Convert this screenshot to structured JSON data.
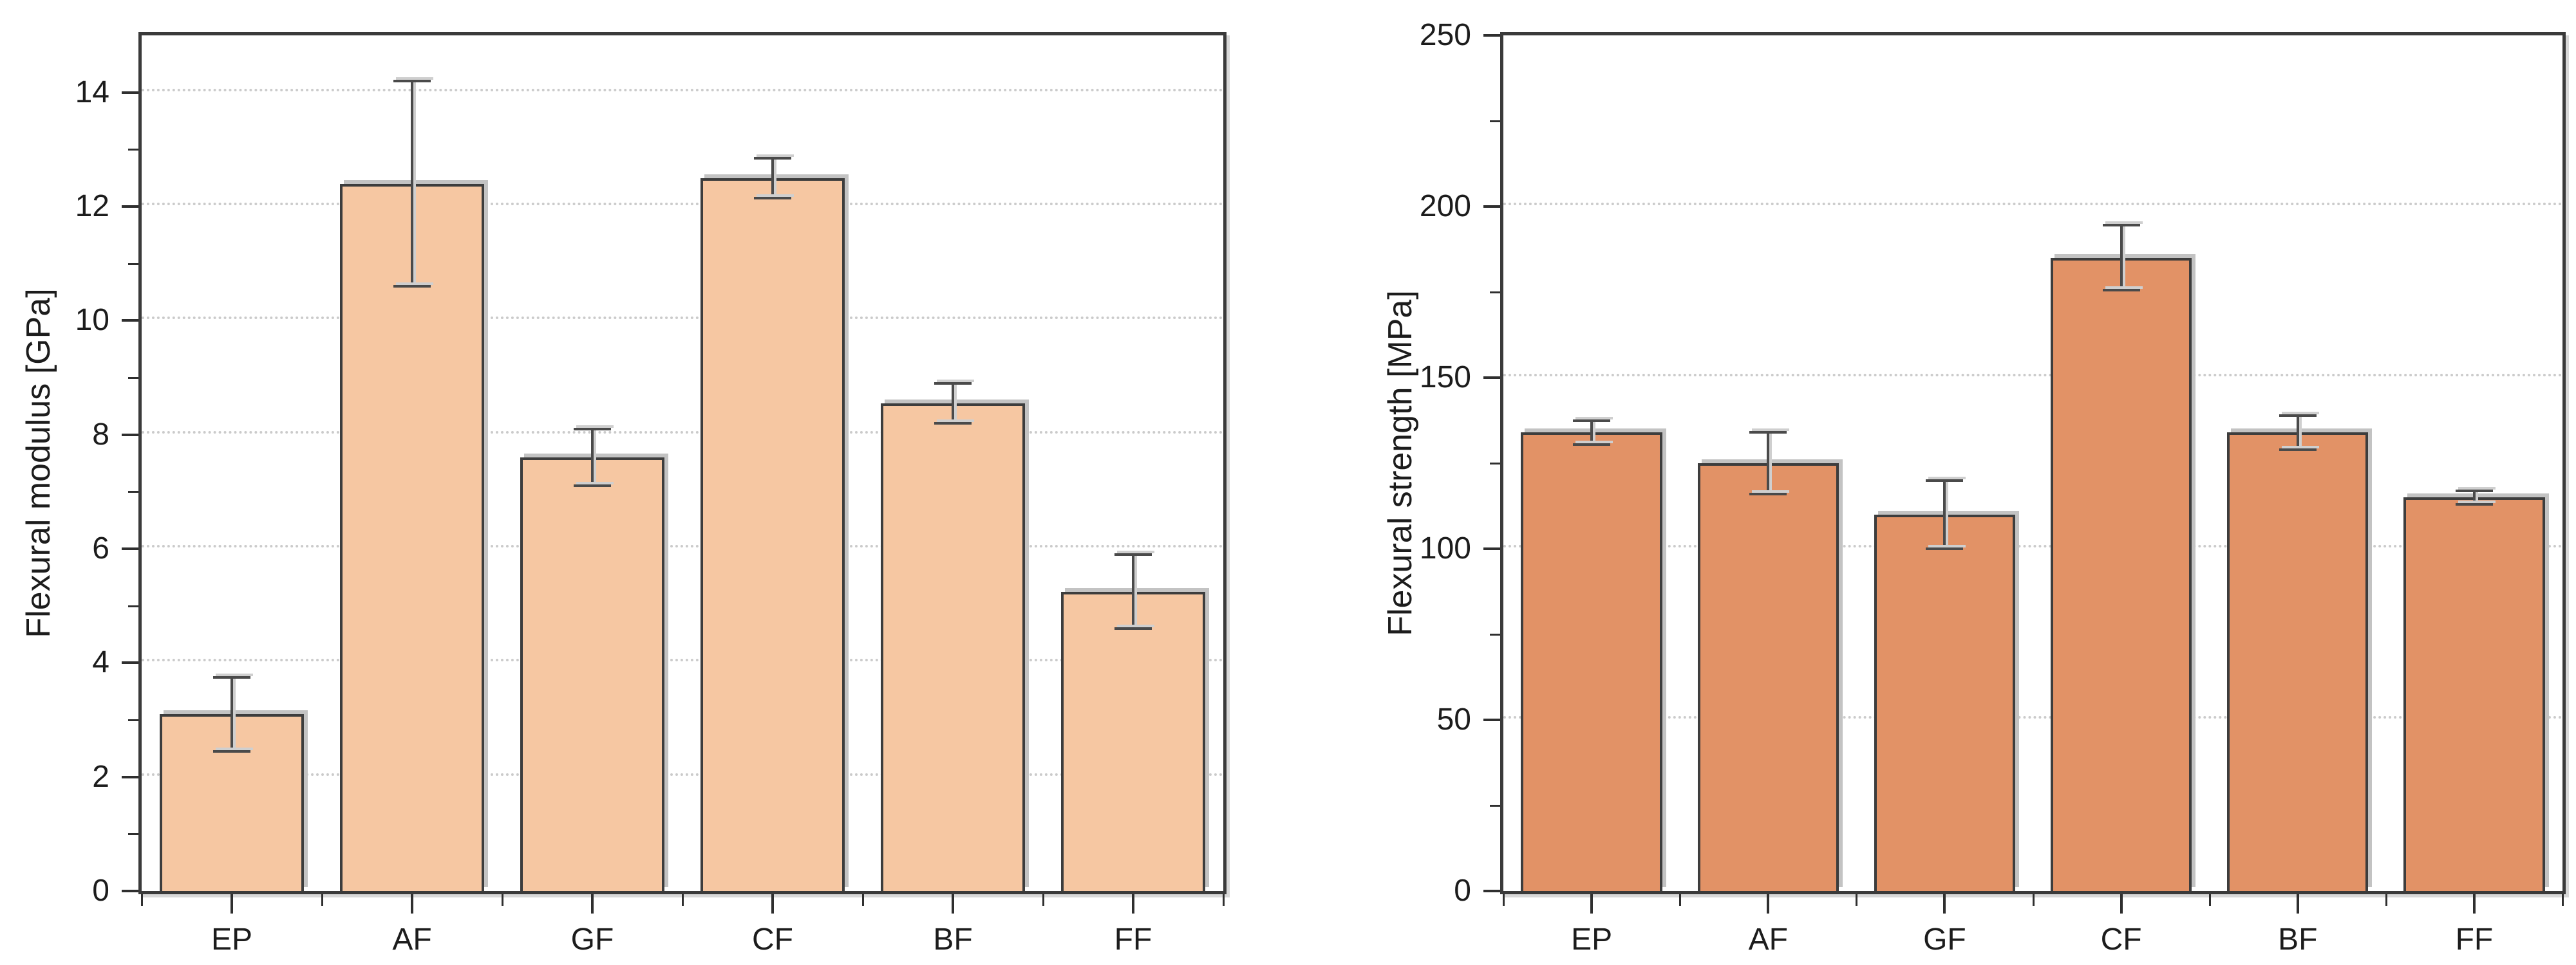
{
  "figure": {
    "background": "#ffffff",
    "text_color": "#1c1c1c",
    "axis_color": "#3a3a3a",
    "gridline_color": "#cbcbcb",
    "shadow_color": "#c3c3c3"
  },
  "chart_data": [
    {
      "type": "bar",
      "title": "",
      "ylabel": "Flexural modulus [GPa]",
      "xlabel": "",
      "categories": [
        "EP",
        "AF",
        "GF",
        "CF",
        "BF",
        "FF"
      ],
      "values": [
        3.1,
        12.4,
        7.6,
        12.5,
        8.55,
        5.25
      ],
      "errors": [
        0.65,
        1.8,
        0.5,
        0.35,
        0.35,
        0.65
      ],
      "ylim": [
        0,
        15
      ],
      "yticks": [
        0,
        2,
        4,
        6,
        8,
        10,
        12,
        14
      ],
      "ytick_labels": [
        "0",
        "2",
        "4",
        "6",
        "8",
        "10",
        "12",
        "14"
      ],
      "yminor": [
        1,
        3,
        5,
        7,
        9,
        11,
        13
      ],
      "gridlines": [
        2,
        4,
        6,
        8,
        10,
        12,
        14
      ],
      "grid": "dotted-horizontal",
      "legend": "none",
      "bar_color": "#f6c7a2",
      "bar_border_color": "#3d3d3d",
      "error_bar_color": "#4a4a4a"
    },
    {
      "type": "bar",
      "title": "",
      "ylabel": "Flexural strength [MPa]",
      "xlabel": "",
      "categories": [
        "EP",
        "AF",
        "GF",
        "CF",
        "BF",
        "FF"
      ],
      "values": [
        134,
        125,
        110,
        185,
        134,
        115
      ],
      "errors": [
        3.5,
        9,
        10,
        9.5,
        5,
        2
      ],
      "ylim": [
        0,
        250
      ],
      "yticks": [
        0,
        50,
        100,
        150,
        200,
        250
      ],
      "ytick_labels": [
        "0",
        "50",
        "100",
        "150",
        "200",
        "250"
      ],
      "yminor": [
        25,
        75,
        125,
        175,
        225
      ],
      "gridlines": [
        50,
        100,
        150,
        200
      ],
      "grid": "dotted-horizontal",
      "legend": "none",
      "bar_color": "#e29266",
      "bar_border_color": "#3d3d3d",
      "error_bar_color": "#4a4a4a"
    }
  ]
}
